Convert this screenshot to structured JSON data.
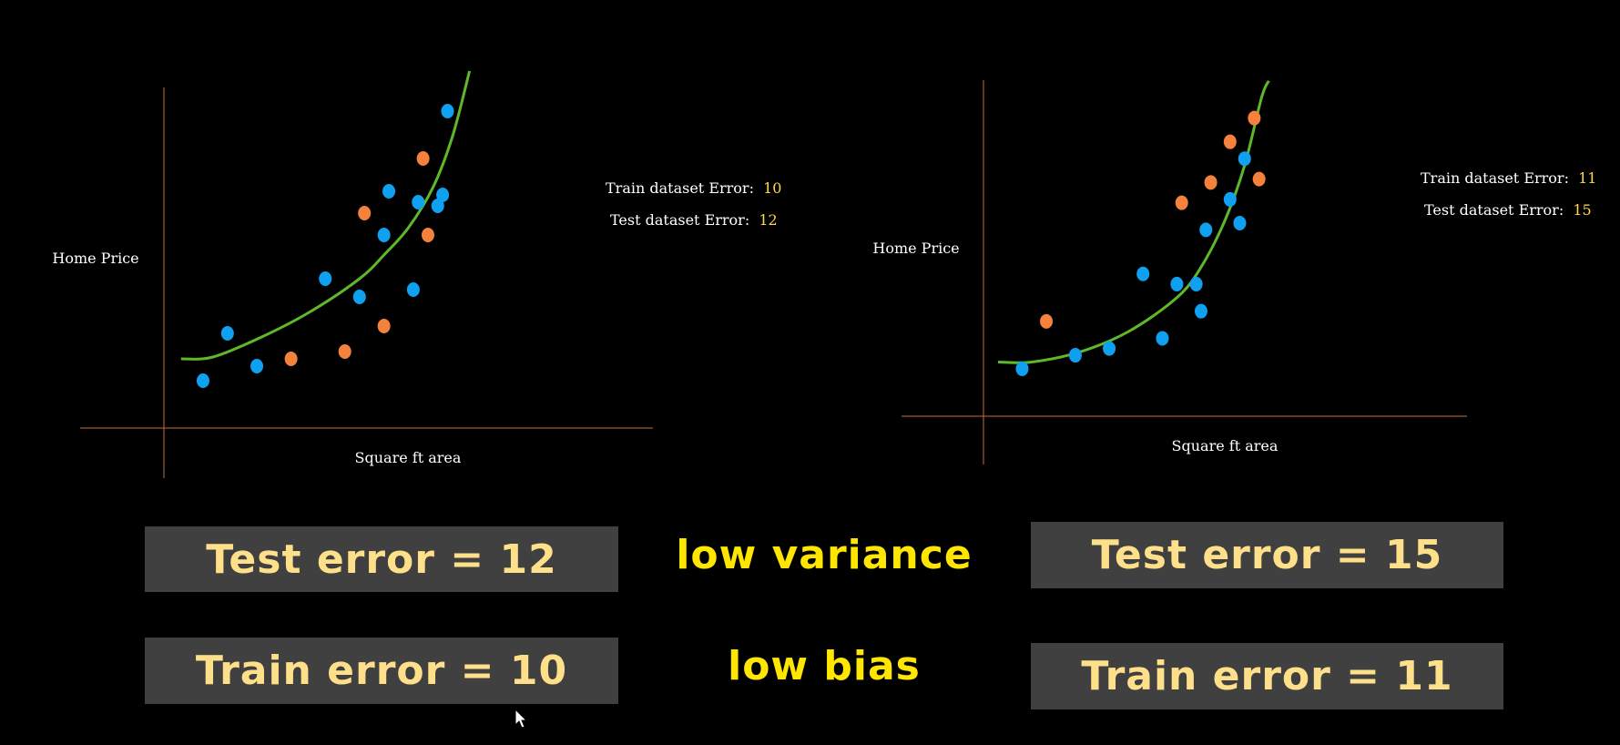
{
  "colors": {
    "background": "#000000",
    "axis": "#c0703a",
    "curve": "#5fb82a",
    "train_point": "#10a0f0",
    "test_point": "#f5823c",
    "box_bg": "#404040",
    "box_text": "#ffe08a",
    "accent_text": "#ffe600",
    "value_text": "#ffd84a"
  },
  "chart_data": [
    {
      "type": "scatter",
      "title": "",
      "xlabel": "Square ft area",
      "ylabel": "Home Price",
      "xlim": [
        0,
        10
      ],
      "ylim": [
        0,
        10
      ],
      "grid": false,
      "legend": "none",
      "annotations": [
        {
          "label": "Train dataset Error:",
          "value": "10"
        },
        {
          "label": "Test dataset Error:",
          "value": "12"
        }
      ],
      "series": [
        {
          "role": "train",
          "points": [
            [
              0.8,
              1.3
            ],
            [
              1.3,
              2.6
            ],
            [
              1.9,
              1.7
            ],
            [
              3.3,
              4.1
            ],
            [
              4.0,
              3.6
            ],
            [
              4.5,
              5.3
            ],
            [
              4.6,
              6.5
            ],
            [
              5.1,
              3.8
            ],
            [
              5.2,
              6.2
            ],
            [
              5.6,
              6.1
            ],
            [
              5.7,
              6.4
            ],
            [
              5.8,
              8.7
            ]
          ]
        },
        {
          "role": "test",
          "points": [
            [
              2.6,
              1.9
            ],
            [
              3.7,
              2.1
            ],
            [
              4.1,
              5.9
            ],
            [
              4.5,
              2.8
            ],
            [
              5.3,
              7.4
            ],
            [
              5.4,
              5.3
            ]
          ]
        },
        {
          "role": "fit",
          "curve": [
            [
              0.35,
              1.9
            ],
            [
              1.0,
              1.95
            ],
            [
              2.0,
              2.5
            ],
            [
              3.0,
              3.2
            ],
            [
              4.0,
              4.1
            ],
            [
              4.5,
              4.75
            ],
            [
              5.0,
              5.5
            ],
            [
              5.5,
              6.6
            ],
            [
              5.9,
              8.0
            ],
            [
              6.25,
              9.8
            ]
          ]
        }
      ]
    },
    {
      "type": "scatter",
      "title": "",
      "xlabel": "Square ft area",
      "ylabel": "Home Price",
      "xlim": [
        0,
        10
      ],
      "ylim": [
        0,
        10
      ],
      "grid": false,
      "legend": "none",
      "annotations": [
        {
          "label": "Train dataset Error:",
          "value": "11"
        },
        {
          "label": "Test dataset Error:",
          "value": "15"
        }
      ],
      "series": [
        {
          "role": "train",
          "points": [
            [
              0.8,
              1.4
            ],
            [
              1.9,
              1.8
            ],
            [
              2.6,
              2.0
            ],
            [
              3.3,
              4.2
            ],
            [
              3.7,
              2.3
            ],
            [
              4.0,
              3.9
            ],
            [
              4.5,
              3.1
            ],
            [
              4.6,
              5.5
            ],
            [
              4.4,
              3.9
            ],
            [
              5.1,
              6.4
            ],
            [
              5.4,
              7.6
            ],
            [
              5.3,
              5.7
            ]
          ]
        },
        {
          "role": "test",
          "points": [
            [
              1.3,
              2.8
            ],
            [
              4.1,
              6.3
            ],
            [
              4.7,
              6.9
            ],
            [
              5.1,
              8.1
            ],
            [
              5.6,
              8.8
            ],
            [
              5.7,
              7.0
            ]
          ]
        },
        {
          "role": "fit",
          "curve": [
            [
              0.3,
              1.6
            ],
            [
              1.0,
              1.6
            ],
            [
              2.0,
              1.9
            ],
            [
              3.0,
              2.5
            ],
            [
              4.0,
              3.5
            ],
            [
              4.5,
              4.4
            ],
            [
              5.0,
              5.8
            ],
            [
              5.4,
              7.4
            ],
            [
              5.75,
              9.4
            ],
            [
              5.9,
              9.9
            ]
          ]
        }
      ]
    }
  ],
  "boxes": {
    "left_test": "Test error = 12",
    "left_train": "Train error = 10",
    "right_test": "Test error = 15",
    "right_train": "Train error = 11"
  },
  "labels": {
    "variance": "low variance",
    "bias": "low bias"
  }
}
